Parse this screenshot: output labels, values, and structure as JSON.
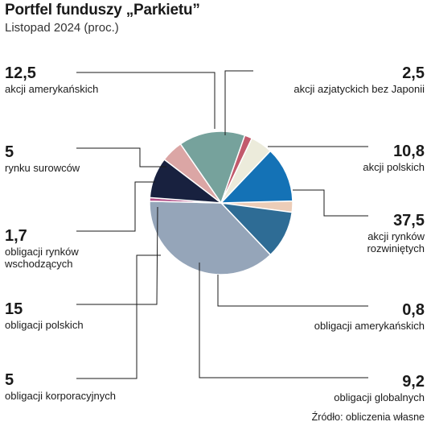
{
  "chart_data": {
    "type": "pie",
    "title": "Portfel funduszy „Parkietu”",
    "subtitle": "Listopad 2024 (proc.)",
    "source": "Źródło: obliczenia własne",
    "slices": [
      {
        "value": 2.5,
        "value_label": "2,5",
        "label": [
          "akcji azjatyckich bez Japonii"
        ],
        "color": "#eccdb8"
      },
      {
        "value": 10.8,
        "value_label": "10,8",
        "label": [
          "akcji polskich"
        ],
        "color": "#2e6c95"
      },
      {
        "value": 37.5,
        "value_label": "37,5",
        "label": [
          "akcji rynków",
          "rozwiniętych"
        ],
        "color": "#95a5b9"
      },
      {
        "value": 0.8,
        "value_label": "0,8",
        "label": [
          "obligacji amerykańskich"
        ],
        "color": "#b14d86"
      },
      {
        "value": 9.2,
        "value_label": "9,2",
        "label": [
          "obligacji globalnych"
        ],
        "color": "#18213f"
      },
      {
        "value": 5,
        "value_label": "5",
        "label": [
          "obligacji korporacyjnych"
        ],
        "color": "#dba6a5"
      },
      {
        "value": 15,
        "value_label": "15",
        "label": [
          "obligacji polskich"
        ],
        "color": "#76a29c"
      },
      {
        "value": 1.7,
        "value_label": "1,7",
        "label": [
          "obligacji rynków",
          "wschodzących"
        ],
        "color": "#c25a6c"
      },
      {
        "value": 5,
        "value_label": "5",
        "label": [
          "rynku surowców"
        ],
        "color": "#ecebdb"
      },
      {
        "value": 12.5,
        "value_label": "12,5",
        "label": [
          "akcji amerykańskich"
        ],
        "color": "#1472b6"
      }
    ]
  }
}
